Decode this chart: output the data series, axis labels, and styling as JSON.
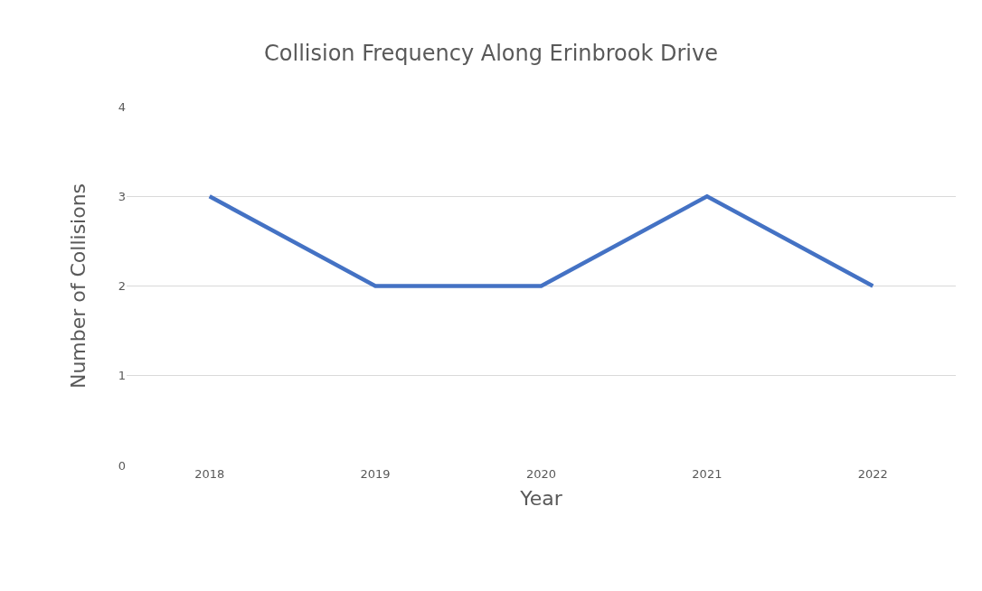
{
  "chart_data": {
    "type": "line",
    "title": "Collision Frequency Along Erinbrook Drive",
    "xlabel": "Year",
    "ylabel": "Number of Collisions",
    "categories": [
      "2018",
      "2019",
      "2020",
      "2021",
      "2022"
    ],
    "series": [
      {
        "color": "#4472c4",
        "values": [
          3,
          2,
          2,
          3,
          2
        ]
      }
    ],
    "ylim": [
      0,
      4
    ],
    "yticks": [
      0,
      1,
      2,
      3,
      4
    ],
    "grid": "y",
    "legend": false,
    "marker": "none",
    "line_style": "solid"
  }
}
